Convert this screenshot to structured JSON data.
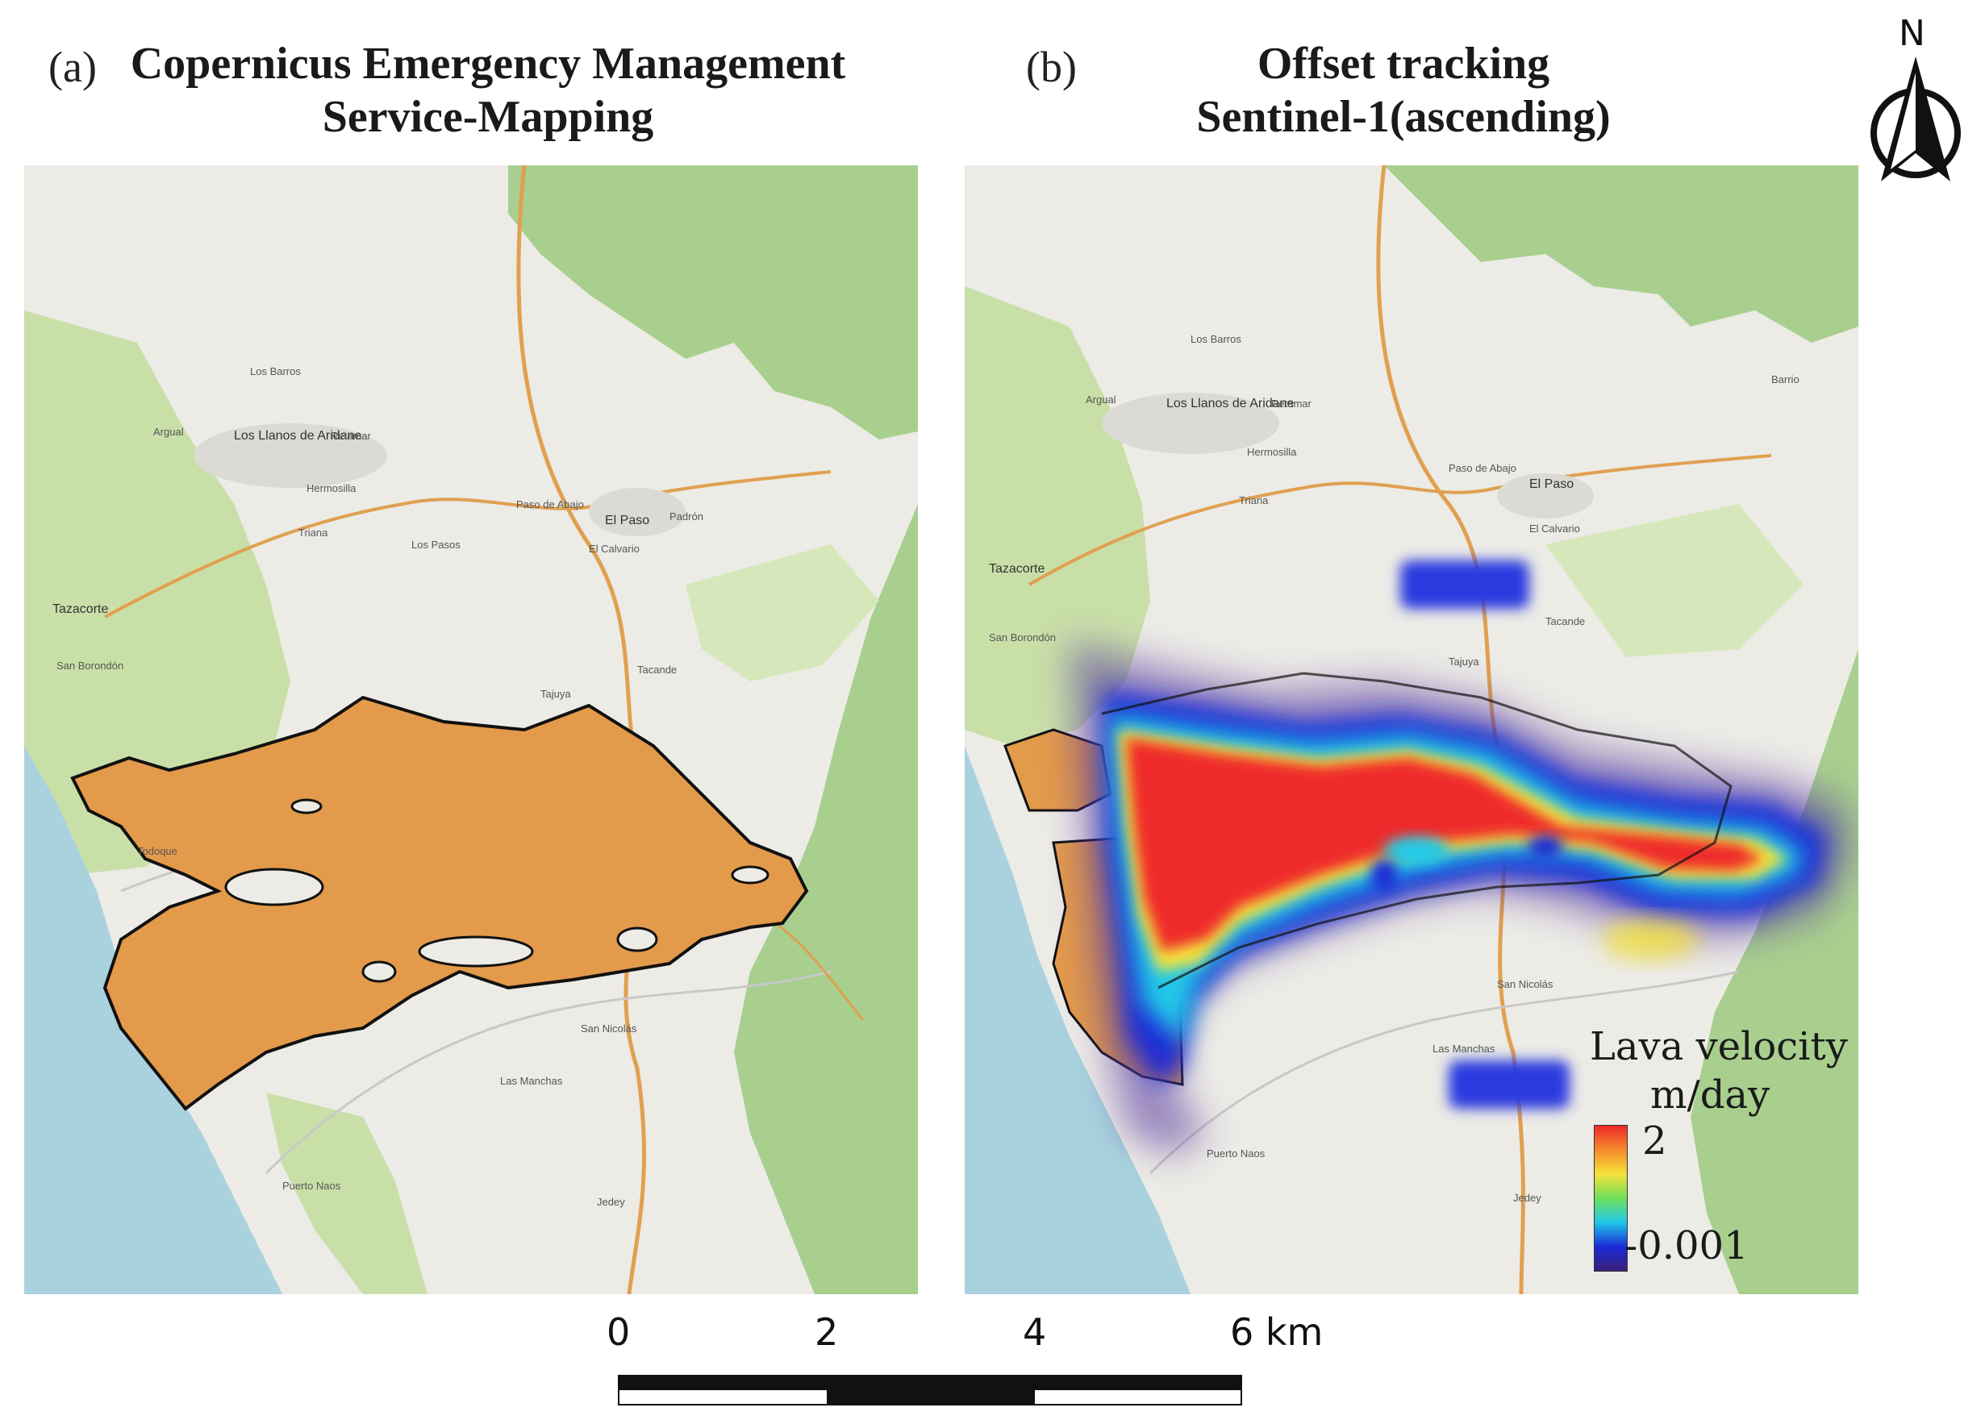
{
  "panels": [
    {
      "letter": "(a)",
      "title_line1": "Copernicus Emergency Management",
      "title_line2": "Service-Mapping"
    },
    {
      "letter": "(b)",
      "title_line1": "Offset tracking",
      "title_line2": "Sentinel-1(ascending)"
    }
  ],
  "map_a_places": [
    "Los Barros",
    "Argual",
    "Los Llanos de Aridane",
    "Retamar",
    "Hermosilla",
    "Triana",
    "Paso de Abajo",
    "El Paso",
    "Padrón",
    "El Calvario",
    "Tazacorte",
    "San Borondón",
    "Tacande",
    "Tajuya",
    "Los Pasos",
    "Todoque",
    "San Nicolás",
    "Las Manchas",
    "Puerto Naos",
    "Jedey"
  ],
  "map_b_places": [
    "Los Barros",
    "Argual",
    "Los Llanos de Aridane",
    "Retamar",
    "Hermosilla",
    "Triana",
    "Paso de Abajo",
    "El Paso",
    "El Calvario",
    "Tazacorte",
    "San Borondón",
    "Tacande",
    "Tajuya",
    "San Nicolás",
    "Las Manchas",
    "Puerto Naos",
    "Jedey",
    "Barrio"
  ],
  "legend": {
    "title_line1": "Lava velocity",
    "title_line2": "m/day",
    "max_label": "2",
    "min_label": "-0.001",
    "max_value": 2,
    "min_value": -0.001,
    "colors": [
      "#3a1f7a",
      "#1a2bd6",
      "#20c8e8",
      "#6fe05a",
      "#f4e23a",
      "#f58a2c",
      "#ef2b2b"
    ]
  },
  "scale_bar": {
    "labels": [
      "0",
      "2",
      "4",
      "6 km"
    ],
    "values_km": [
      0,
      2,
      4,
      6
    ]
  },
  "north_arrow": {
    "label": "N"
  },
  "colors": {
    "lava_flow": "#e39a4b",
    "map_green": "#c9dfa8",
    "forest": "#a8cf8e",
    "sea": "#a9d2de",
    "land": "#ecebe6"
  }
}
